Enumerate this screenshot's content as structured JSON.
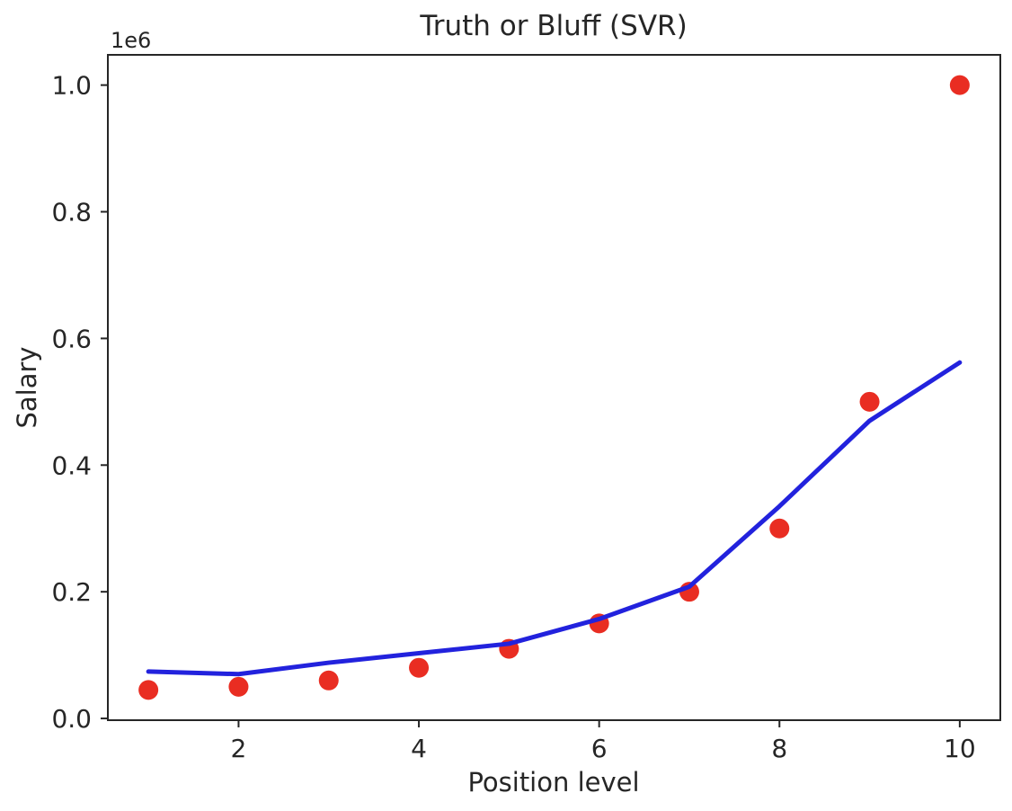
{
  "figure": {
    "background": "#ffffff",
    "axis_color": "#262626",
    "text_color": "#262626"
  },
  "chart_data": {
    "type": "scatter",
    "title": "Truth or Bluff (SVR)",
    "xlabel": "Position level",
    "ylabel": "Salary",
    "y_offset_label": "1e6",
    "grid": false,
    "legend": "none",
    "x": [
      1,
      2,
      3,
      4,
      5,
      6,
      7,
      8,
      9,
      10
    ],
    "series": [
      {
        "name": "actual-salary-points",
        "kind": "scatter",
        "color": "#e92d22",
        "marker_radius": 11,
        "values": [
          45000,
          50000,
          60000,
          80000,
          110000,
          150000,
          200000,
          300000,
          500000,
          1000000
        ]
      },
      {
        "name": "svr-prediction-line",
        "kind": "line",
        "color": "#2222dd",
        "line_width": 5,
        "values": [
          74000,
          70000,
          88000,
          103000,
          118000,
          157000,
          208000,
          335000,
          470000,
          562000
        ]
      }
    ],
    "xlim": [
      0.55,
      10.45
    ],
    "ylim": [
      -2750,
      1047750
    ],
    "x_ticks": [
      2,
      4,
      6,
      8,
      10
    ],
    "x_tick_labels": [
      "2",
      "4",
      "6",
      "8",
      "10"
    ],
    "y_ticks": [
      0,
      200000,
      400000,
      600000,
      800000,
      1000000
    ],
    "y_tick_labels": [
      "0.0",
      "0.2",
      "0.4",
      "0.6",
      "0.8",
      "1.0"
    ]
  }
}
